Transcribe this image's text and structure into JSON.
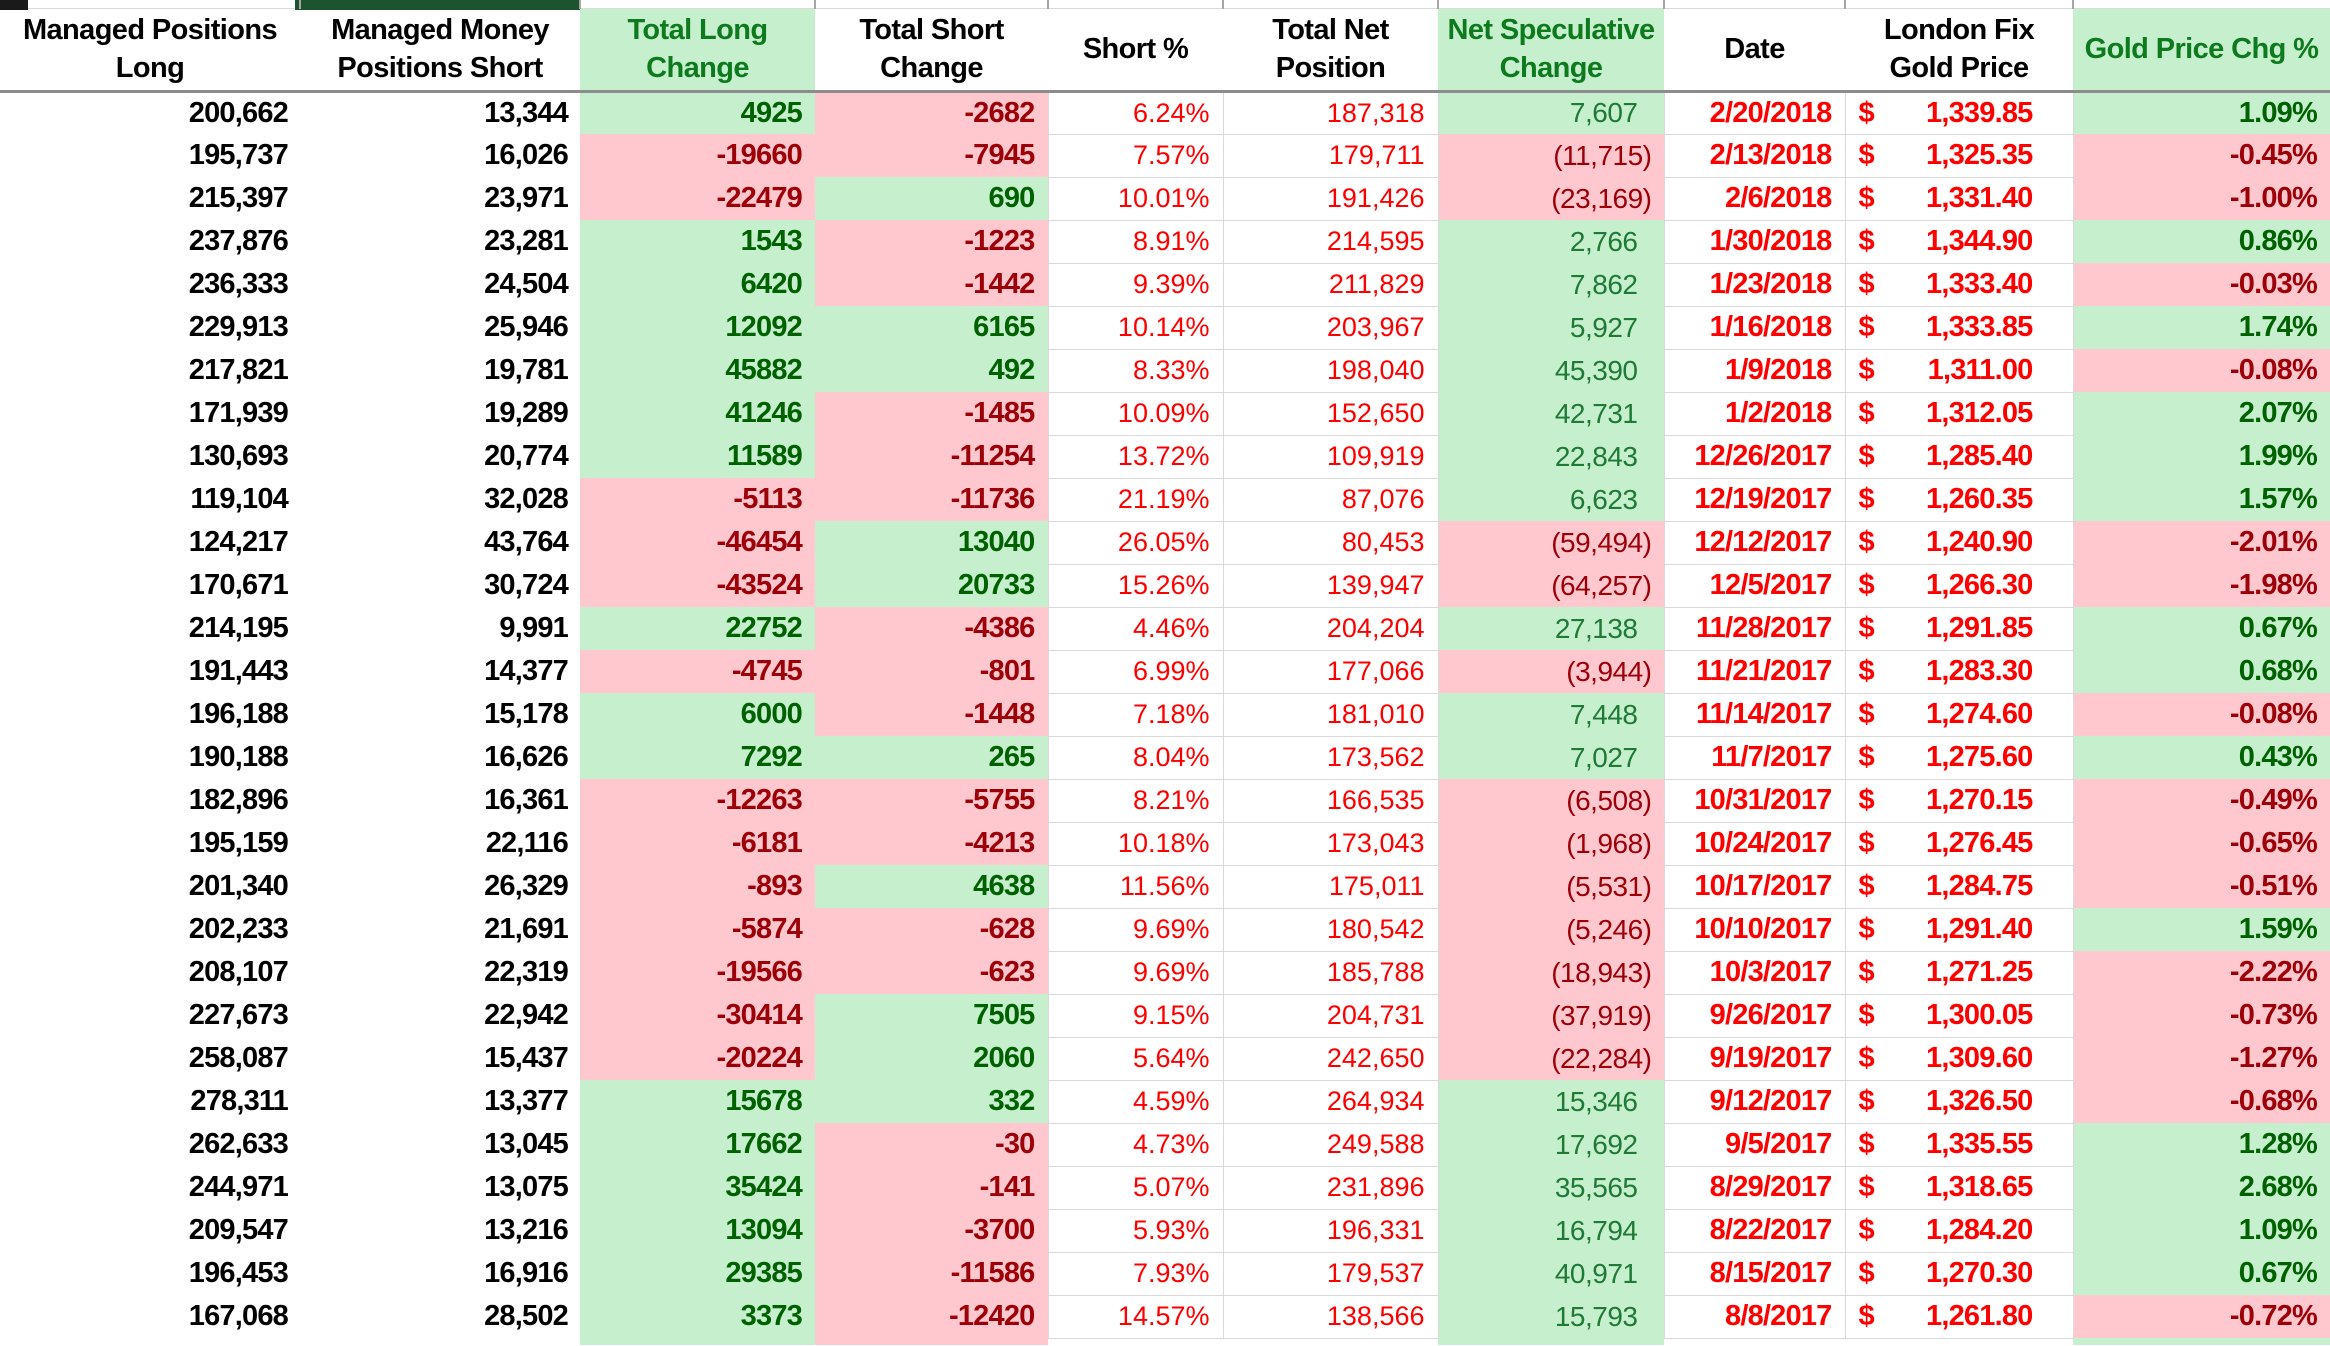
{
  "colors": {
    "positive_fill": "#C6EFCE",
    "positive_text": "#006100",
    "negative_fill": "#FFC7CE",
    "negative_text": "#9C0006",
    "bright_red_text": "#FF0000",
    "header_green_text": "#0E7A1E",
    "gridline": "#D9D9D9",
    "header_rule": "#8C8C8C",
    "top_bar_green": "#1D5430",
    "top_bar_black": "#1A1A1A"
  },
  "table": {
    "columns": [
      {
        "field": "managed_long",
        "label": "Managed Positions Long",
        "line1": "Managed Positions",
        "line2": "Long",
        "kind": "black",
        "header_style": "white"
      },
      {
        "field": "managed_short",
        "label": "Managed Money Positions Short",
        "line1": "Managed Money",
        "line2": "Positions Short",
        "kind": "black",
        "header_style": "white"
      },
      {
        "field": "total_long_chg",
        "label": "Total Long Change",
        "line1": "Total Long",
        "line2": "Change",
        "kind": "chg",
        "header_style": "green"
      },
      {
        "field": "total_short_chg",
        "label": "Total Short Change",
        "line1": "Total Short",
        "line2": "Change",
        "kind": "chg",
        "header_style": "white"
      },
      {
        "field": "short_pct",
        "label": "Short %",
        "line1": "Short %",
        "line2": "",
        "kind": "red",
        "header_style": "white"
      },
      {
        "field": "total_net",
        "label": "Total Net Position",
        "line1": "Total Net",
        "line2": "Position",
        "kind": "red",
        "header_style": "white"
      },
      {
        "field": "net_spec",
        "label": "Net Speculative Change",
        "line1": "Net Speculative",
        "line2": "Change",
        "kind": "spec",
        "header_style": "green"
      },
      {
        "field": "date",
        "label": "Date",
        "line1": "Date",
        "line2": "",
        "kind": "date",
        "header_style": "white"
      },
      {
        "field": "price",
        "label": "London Fix Gold Price",
        "line1": "London Fix",
        "line2": "Gold Price",
        "kind": "price",
        "header_style": "white"
      },
      {
        "field": "price_chg",
        "label": "Gold Price Chg %",
        "line1": "Gold Price Chg %",
        "line2": "",
        "kind": "chg",
        "header_style": "green"
      }
    ],
    "currency_symbol": "$",
    "rows": [
      {
        "managed_long": "200,662",
        "managed_short": "13,344",
        "total_long_chg": "4925",
        "total_short_chg": "-2682",
        "short_pct": "6.24%",
        "total_net": "187,318",
        "net_spec": "7,607",
        "date": "2/20/2018",
        "currency": "$",
        "price": "1,339.85",
        "price_chg": "1.09%"
      },
      {
        "managed_long": "195,737",
        "managed_short": "16,026",
        "total_long_chg": "-19660",
        "total_short_chg": "-7945",
        "short_pct": "7.57%",
        "total_net": "179,711",
        "net_spec": "(11,715)",
        "date": "2/13/2018",
        "currency": "$",
        "price": "1,325.35",
        "price_chg": "-0.45%"
      },
      {
        "managed_long": "215,397",
        "managed_short": "23,971",
        "total_long_chg": "-22479",
        "total_short_chg": "690",
        "short_pct": "10.01%",
        "total_net": "191,426",
        "net_spec": "(23,169)",
        "date": "2/6/2018",
        "currency": "$",
        "price": "1,331.40",
        "price_chg": "-1.00%"
      },
      {
        "managed_long": "237,876",
        "managed_short": "23,281",
        "total_long_chg": "1543",
        "total_short_chg": "-1223",
        "short_pct": "8.91%",
        "total_net": "214,595",
        "net_spec": "2,766",
        "date": "1/30/2018",
        "currency": "$",
        "price": "1,344.90",
        "price_chg": "0.86%"
      },
      {
        "managed_long": "236,333",
        "managed_short": "24,504",
        "total_long_chg": "6420",
        "total_short_chg": "-1442",
        "short_pct": "9.39%",
        "total_net": "211,829",
        "net_spec": "7,862",
        "date": "1/23/2018",
        "currency": "$",
        "price": "1,333.40",
        "price_chg": "-0.03%"
      },
      {
        "managed_long": "229,913",
        "managed_short": "25,946",
        "total_long_chg": "12092",
        "total_short_chg": "6165",
        "short_pct": "10.14%",
        "total_net": "203,967",
        "net_spec": "5,927",
        "date": "1/16/2018",
        "currency": "$",
        "price": "1,333.85",
        "price_chg": "1.74%"
      },
      {
        "managed_long": "217,821",
        "managed_short": "19,781",
        "total_long_chg": "45882",
        "total_short_chg": "492",
        "short_pct": "8.33%",
        "total_net": "198,040",
        "net_spec": "45,390",
        "date": "1/9/2018",
        "currency": "$",
        "price": "1,311.00",
        "price_chg": "-0.08%"
      },
      {
        "managed_long": "171,939",
        "managed_short": "19,289",
        "total_long_chg": "41246",
        "total_short_chg": "-1485",
        "short_pct": "10.09%",
        "total_net": "152,650",
        "net_spec": "42,731",
        "date": "1/2/2018",
        "currency": "$",
        "price": "1,312.05",
        "price_chg": "2.07%"
      },
      {
        "managed_long": "130,693",
        "managed_short": "20,774",
        "total_long_chg": "11589",
        "total_short_chg": "-11254",
        "short_pct": "13.72%",
        "total_net": "109,919",
        "net_spec": "22,843",
        "date": "12/26/2017",
        "currency": "$",
        "price": "1,285.40",
        "price_chg": "1.99%"
      },
      {
        "managed_long": "119,104",
        "managed_short": "32,028",
        "total_long_chg": "-5113",
        "total_short_chg": "-11736",
        "short_pct": "21.19%",
        "total_net": "87,076",
        "net_spec": "6,623",
        "date": "12/19/2017",
        "currency": "$",
        "price": "1,260.35",
        "price_chg": "1.57%"
      },
      {
        "managed_long": "124,217",
        "managed_short": "43,764",
        "total_long_chg": "-46454",
        "total_short_chg": "13040",
        "short_pct": "26.05%",
        "total_net": "80,453",
        "net_spec": "(59,494)",
        "date": "12/12/2017",
        "currency": "$",
        "price": "1,240.90",
        "price_chg": "-2.01%"
      },
      {
        "managed_long": "170,671",
        "managed_short": "30,724",
        "total_long_chg": "-43524",
        "total_short_chg": "20733",
        "short_pct": "15.26%",
        "total_net": "139,947",
        "net_spec": "(64,257)",
        "date": "12/5/2017",
        "currency": "$",
        "price": "1,266.30",
        "price_chg": "-1.98%"
      },
      {
        "managed_long": "214,195",
        "managed_short": "9,991",
        "total_long_chg": "22752",
        "total_short_chg": "-4386",
        "short_pct": "4.46%",
        "total_net": "204,204",
        "net_spec": "27,138",
        "date": "11/28/2017",
        "currency": "$",
        "price": "1,291.85",
        "price_chg": "0.67%"
      },
      {
        "managed_long": "191,443",
        "managed_short": "14,377",
        "total_long_chg": "-4745",
        "total_short_chg": "-801",
        "short_pct": "6.99%",
        "total_net": "177,066",
        "net_spec": "(3,944)",
        "date": "11/21/2017",
        "currency": "$",
        "price": "1,283.30",
        "price_chg": "0.68%"
      },
      {
        "managed_long": "196,188",
        "managed_short": "15,178",
        "total_long_chg": "6000",
        "total_short_chg": "-1448",
        "short_pct": "7.18%",
        "total_net": "181,010",
        "net_spec": "7,448",
        "date": "11/14/2017",
        "currency": "$",
        "price": "1,274.60",
        "price_chg": "-0.08%"
      },
      {
        "managed_long": "190,188",
        "managed_short": "16,626",
        "total_long_chg": "7292",
        "total_short_chg": "265",
        "short_pct": "8.04%",
        "total_net": "173,562",
        "net_spec": "7,027",
        "date": "11/7/2017",
        "currency": "$",
        "price": "1,275.60",
        "price_chg": "0.43%"
      },
      {
        "managed_long": "182,896",
        "managed_short": "16,361",
        "total_long_chg": "-12263",
        "total_short_chg": "-5755",
        "short_pct": "8.21%",
        "total_net": "166,535",
        "net_spec": "(6,508)",
        "date": "10/31/2017",
        "currency": "$",
        "price": "1,270.15",
        "price_chg": "-0.49%"
      },
      {
        "managed_long": "195,159",
        "managed_short": "22,116",
        "total_long_chg": "-6181",
        "total_short_chg": "-4213",
        "short_pct": "10.18%",
        "total_net": "173,043",
        "net_spec": "(1,968)",
        "date": "10/24/2017",
        "currency": "$",
        "price": "1,276.45",
        "price_chg": "-0.65%"
      },
      {
        "managed_long": "201,340",
        "managed_short": "26,329",
        "total_long_chg": "-893",
        "total_short_chg": "4638",
        "short_pct": "11.56%",
        "total_net": "175,011",
        "net_spec": "(5,531)",
        "date": "10/17/2017",
        "currency": "$",
        "price": "1,284.75",
        "price_chg": "-0.51%"
      },
      {
        "managed_long": "202,233",
        "managed_short": "21,691",
        "total_long_chg": "-5874",
        "total_short_chg": "-628",
        "short_pct": "9.69%",
        "total_net": "180,542",
        "net_spec": "(5,246)",
        "date": "10/10/2017",
        "currency": "$",
        "price": "1,291.40",
        "price_chg": "1.59%"
      },
      {
        "managed_long": "208,107",
        "managed_short": "22,319",
        "total_long_chg": "-19566",
        "total_short_chg": "-623",
        "short_pct": "9.69%",
        "total_net": "185,788",
        "net_spec": "(18,943)",
        "date": "10/3/2017",
        "currency": "$",
        "price": "1,271.25",
        "price_chg": "-2.22%"
      },
      {
        "managed_long": "227,673",
        "managed_short": "22,942",
        "total_long_chg": "-30414",
        "total_short_chg": "7505",
        "short_pct": "9.15%",
        "total_net": "204,731",
        "net_spec": "(37,919)",
        "date": "9/26/2017",
        "currency": "$",
        "price": "1,300.05",
        "price_chg": "-0.73%"
      },
      {
        "managed_long": "258,087",
        "managed_short": "15,437",
        "total_long_chg": "-20224",
        "total_short_chg": "2060",
        "short_pct": "5.64%",
        "total_net": "242,650",
        "net_spec": "(22,284)",
        "date": "9/19/2017",
        "currency": "$",
        "price": "1,309.60",
        "price_chg": "-1.27%"
      },
      {
        "managed_long": "278,311",
        "managed_short": "13,377",
        "total_long_chg": "15678",
        "total_short_chg": "332",
        "short_pct": "4.59%",
        "total_net": "264,934",
        "net_spec": "15,346",
        "date": "9/12/2017",
        "currency": "$",
        "price": "1,326.50",
        "price_chg": "-0.68%"
      },
      {
        "managed_long": "262,633",
        "managed_short": "13,045",
        "total_long_chg": "17662",
        "total_short_chg": "-30",
        "short_pct": "4.73%",
        "total_net": "249,588",
        "net_spec": "17,692",
        "date": "9/5/2017",
        "currency": "$",
        "price": "1,335.55",
        "price_chg": "1.28%"
      },
      {
        "managed_long": "244,971",
        "managed_short": "13,075",
        "total_long_chg": "35424",
        "total_short_chg": "-141",
        "short_pct": "5.07%",
        "total_net": "231,896",
        "net_spec": "35,565",
        "date": "8/29/2017",
        "currency": "$",
        "price": "1,318.65",
        "price_chg": "2.68%"
      },
      {
        "managed_long": "209,547",
        "managed_short": "13,216",
        "total_long_chg": "13094",
        "total_short_chg": "-3700",
        "short_pct": "5.93%",
        "total_net": "196,331",
        "net_spec": "16,794",
        "date": "8/22/2017",
        "currency": "$",
        "price": "1,284.20",
        "price_chg": "1.09%"
      },
      {
        "managed_long": "196,453",
        "managed_short": "16,916",
        "total_long_chg": "29385",
        "total_short_chg": "-11586",
        "short_pct": "7.93%",
        "total_net": "179,537",
        "net_spec": "40,971",
        "date": "8/15/2017",
        "currency": "$",
        "price": "1,270.30",
        "price_chg": "0.67%"
      },
      {
        "managed_long": "167,068",
        "managed_short": "28,502",
        "total_long_chg": "3373",
        "total_short_chg": "-12420",
        "short_pct": "14.57%",
        "total_net": "138,566",
        "net_spec": "15,793",
        "date": "8/8/2017",
        "currency": "$",
        "price": "1,261.80",
        "price_chg": "-0.72%"
      }
    ]
  }
}
